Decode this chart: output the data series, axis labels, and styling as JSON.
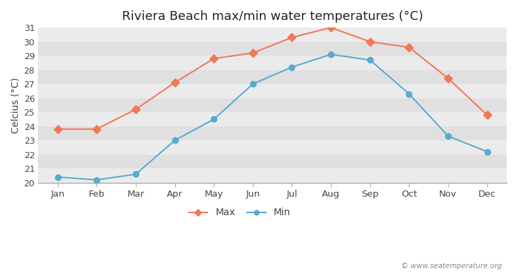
{
  "title": "Riviera Beach max/min water temperatures (°C)",
  "ylabel": "Celcius (°C)",
  "months": [
    "Jan",
    "Feb",
    "Mar",
    "Apr",
    "May",
    "Jun",
    "Jul",
    "Aug",
    "Sep",
    "Oct",
    "Nov",
    "Dec"
  ],
  "max_values": [
    23.8,
    23.8,
    25.2,
    27.1,
    28.8,
    29.2,
    30.3,
    31.0,
    30.0,
    29.6,
    27.4,
    24.8
  ],
  "min_values": [
    20.4,
    20.2,
    20.6,
    23.0,
    24.5,
    27.0,
    28.2,
    29.1,
    28.7,
    26.3,
    23.3,
    22.2
  ],
  "max_color": "#f07858",
  "min_color": "#5aaad0",
  "bg_color": "#ffffff",
  "plot_bg_color_light": "#ebebeb",
  "plot_bg_color_dark": "#e0e0e0",
  "ylim_min": 20,
  "ylim_max": 31,
  "yticks": [
    20,
    21,
    22,
    23,
    24,
    25,
    26,
    27,
    28,
    29,
    30,
    31
  ],
  "title_fontsize": 13,
  "axis_label_fontsize": 10,
  "watermark": "© www.seatemperature.org",
  "legend_max_label": "Max",
  "legend_min_label": "Min"
}
